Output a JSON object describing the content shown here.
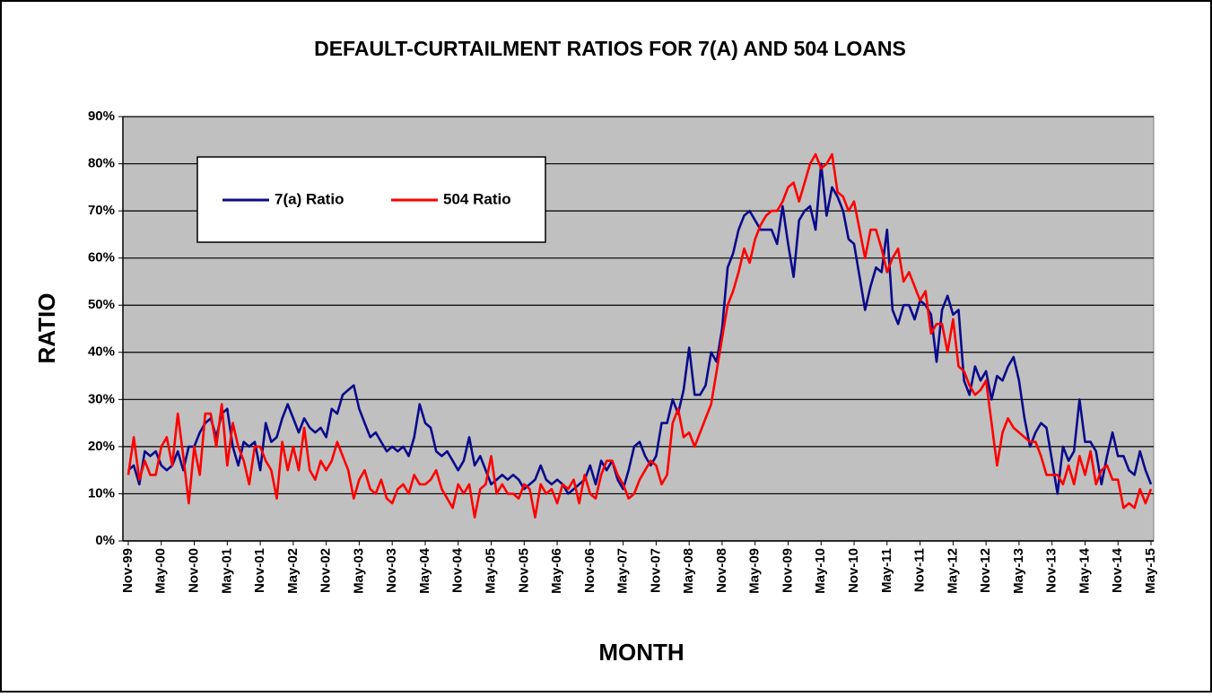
{
  "chart_data": {
    "type": "line",
    "title": "DEFAULT-CURTAILMENT RATIOS FOR 7(A) AND 504 LOANS",
    "x_label": "MONTH",
    "y_label": "RATIO",
    "categories": [
      "Nov-99",
      null,
      null,
      null,
      null,
      null,
      "May-00",
      null,
      null,
      null,
      null,
      null,
      "Nov-00",
      null,
      null,
      null,
      null,
      null,
      "May-01",
      null,
      null,
      null,
      null,
      null,
      "Nov-01",
      null,
      null,
      null,
      null,
      null,
      "May-02",
      null,
      null,
      null,
      null,
      null,
      "Nov-02",
      null,
      null,
      null,
      null,
      null,
      "May-03",
      null,
      null,
      null,
      null,
      null,
      "Nov-03",
      null,
      null,
      null,
      null,
      null,
      "May-04",
      null,
      null,
      null,
      null,
      null,
      "Nov-04",
      null,
      null,
      null,
      null,
      null,
      "May-05",
      null,
      null,
      null,
      null,
      null,
      "Nov-05",
      null,
      null,
      null,
      null,
      null,
      "May-06",
      null,
      null,
      null,
      null,
      null,
      "Nov-06",
      null,
      null,
      null,
      null,
      null,
      "May-07",
      null,
      null,
      null,
      null,
      null,
      "Nov-07",
      null,
      null,
      null,
      null,
      null,
      "May-08",
      null,
      null,
      null,
      null,
      null,
      "Nov-08",
      null,
      null,
      null,
      null,
      null,
      "May-09",
      null,
      null,
      null,
      null,
      null,
      "Nov-09",
      null,
      null,
      null,
      null,
      null,
      "May-10",
      null,
      null,
      null,
      null,
      null,
      "Nov-10",
      null,
      null,
      null,
      null,
      null,
      "May-11",
      null,
      null,
      null,
      null,
      null,
      "Nov-11",
      null,
      null,
      null,
      null,
      null,
      "May-12",
      null,
      null,
      null,
      null,
      null,
      "Nov-12",
      null,
      null,
      null,
      null,
      null,
      "May-13",
      null,
      null,
      null,
      null,
      null,
      "Nov-13",
      null,
      null,
      null,
      null,
      null,
      "May-14",
      null,
      null,
      null,
      null,
      null,
      "Nov-14",
      null,
      null,
      null,
      null,
      null,
      "May-15"
    ],
    "series": [
      {
        "name": "7(a) Ratio",
        "color": "#0a0a8c",
        "values": [
          15,
          16,
          12,
          19,
          18,
          19,
          16,
          15,
          16,
          19,
          15,
          20,
          20,
          23,
          25,
          26,
          22,
          27,
          28,
          20,
          16,
          21,
          20,
          21,
          15,
          25,
          21,
          22,
          26,
          29,
          26,
          23,
          26,
          24,
          23,
          24,
          22,
          28,
          27,
          31,
          32,
          33,
          28,
          25,
          22,
          23,
          21,
          19,
          20,
          19,
          20,
          18,
          22,
          29,
          25,
          24,
          19,
          18,
          19,
          17,
          15,
          17,
          22,
          16,
          18,
          15,
          12,
          13,
          14,
          13,
          14,
          13,
          11,
          12,
          13,
          16,
          13,
          12,
          13,
          12,
          10,
          11,
          12,
          13,
          16,
          12,
          17,
          15,
          17,
          13,
          11,
          15,
          20,
          21,
          18,
          16,
          18,
          25,
          25,
          30,
          27,
          32,
          41,
          31,
          31,
          33,
          40,
          38,
          45,
          58,
          61,
          66,
          69,
          70,
          68,
          66,
          66,
          66,
          63,
          71,
          63,
          56,
          68,
          70,
          71,
          66,
          80,
          69,
          75,
          73,
          70,
          64,
          63,
          56,
          49,
          54,
          58,
          57,
          66,
          49,
          46,
          50,
          50,
          47,
          51,
          50,
          48,
          38,
          49,
          52,
          48,
          49,
          34,
          31,
          37,
          34,
          36,
          30,
          35,
          34,
          37,
          39,
          34,
          26,
          20,
          23,
          25,
          24,
          17,
          10,
          20,
          17,
          19,
          30,
          21,
          21,
          19,
          12,
          18,
          23,
          18,
          18,
          15,
          14,
          19,
          15,
          12
        ]
      },
      {
        "name": "504 Ratio",
        "color": "#ff0000",
        "values": [
          14,
          22,
          13,
          17,
          14,
          14,
          20,
          22,
          16,
          27,
          18,
          8,
          20,
          14,
          27,
          27,
          20,
          29,
          16,
          25,
          20,
          17,
          12,
          20,
          20,
          17,
          15,
          9,
          21,
          15,
          20,
          15,
          24,
          15,
          13,
          17,
          15,
          17,
          21,
          18,
          15,
          9,
          13,
          15,
          11,
          10,
          13,
          9,
          8,
          11,
          12,
          10,
          14,
          12,
          12,
          13,
          15,
          11,
          9,
          7,
          12,
          10,
          12,
          5,
          11,
          12,
          18,
          10,
          12,
          10,
          10,
          9,
          12,
          11,
          5,
          12,
          10,
          11,
          8,
          12,
          11,
          13,
          8,
          14,
          10,
          9,
          14,
          17,
          17,
          14,
          12,
          9,
          10,
          13,
          15,
          17,
          16,
          12,
          14,
          25,
          28,
          22,
          23,
          20,
          23,
          26,
          29,
          36,
          43,
          50,
          53,
          57,
          62,
          59,
          64,
          67,
          69,
          70,
          70,
          72,
          75,
          76,
          72,
          76,
          80,
          82,
          79,
          80,
          82,
          74,
          73,
          70,
          72,
          66,
          60,
          66,
          66,
          62,
          57,
          60,
          62,
          55,
          57,
          54,
          51,
          53,
          44,
          46,
          46,
          40,
          47,
          37,
          36,
          33,
          31,
          32,
          34,
          25,
          16,
          23,
          26,
          24,
          23,
          22,
          21,
          21,
          18,
          14,
          14,
          14,
          12,
          16,
          12,
          18,
          14,
          19,
          12,
          15,
          16,
          13,
          13,
          7,
          8,
          7,
          11,
          8,
          11
        ]
      }
    ],
    "ylim": [
      0,
      90
    ],
    "yticks": [
      {
        "value": 0,
        "label": "0%"
      },
      {
        "value": 10,
        "label": "10%"
      },
      {
        "value": 20,
        "label": "20%"
      },
      {
        "value": 30,
        "label": "30%"
      },
      {
        "value": 40,
        "label": "40%"
      },
      {
        "value": 50,
        "label": "50%"
      },
      {
        "value": 60,
        "label": "60%"
      },
      {
        "value": 70,
        "label": "70%"
      },
      {
        "value": 80,
        "label": "80%"
      },
      {
        "value": 90,
        "label": "90%"
      }
    ],
    "grid": true,
    "legend": "upper left"
  }
}
